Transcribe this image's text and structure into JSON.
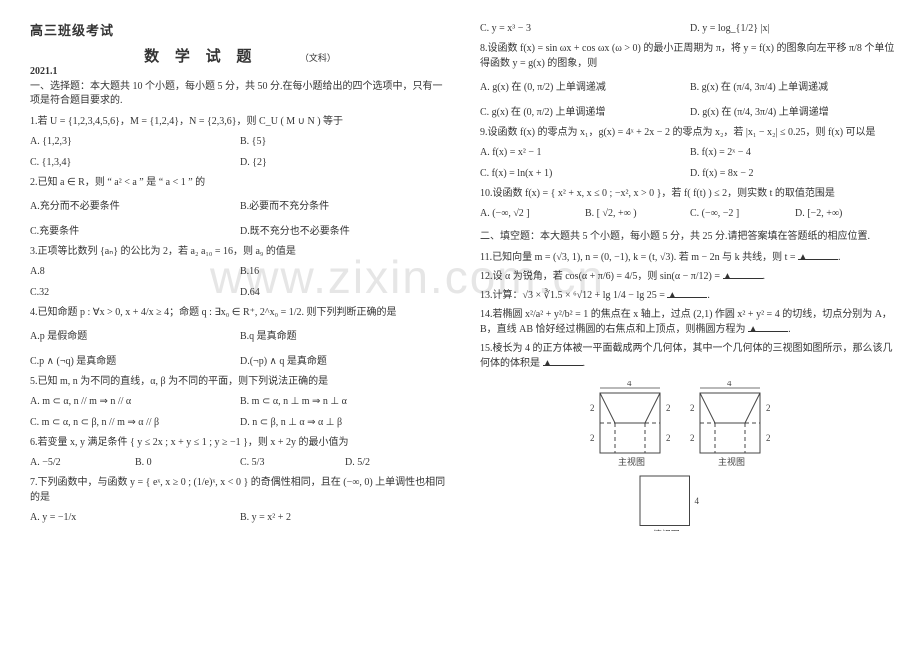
{
  "watermark": "www.zixin.com.cn",
  "left": {
    "header": "高三班级考试",
    "title": "数 学 试 题",
    "title_sub": "（文科）",
    "date": "2021.1",
    "intro": "一、选择题：本大题共 10 个小题，每小题 5 分，共 50 分.在每小题给出的四个选项中，只有一项是符合题目要求的.",
    "q1": "1.若 U = {1,2,3,4,5,6}，M = {1,2,4}，N = {2,3,6}，则 C_U ( M ∪ N ) 等于",
    "q1a": "A. {1,2,3}",
    "q1b": "B. {5}",
    "q1c": "C. {1,3,4}",
    "q1d": "D. {2}",
    "q2": "2.已知 a ∈ R，则 “ a² < a ” 是 “ a < 1 ” 的",
    "q2a": "A.充分而不必要条件",
    "q2b": "B.必要而不充分条件",
    "q2c": "C.充要条件",
    "q2d": "D.既不充分也不必要条件",
    "q3": "3.正项等比数列 {aₙ} 的公比为 2，若 a₂ a₁₀ = 16，则 a₉ 的值是",
    "q3a": "A.8",
    "q3b": "B.16",
    "q3c": "C.32",
    "q3d": "D.64",
    "q4": "4.已知命题 p : ∀x > 0, x + 4/x ≥ 4；命题 q : ∃x₀ ∈ R⁺, 2^x₀ = 1/2. 则下列判断正确的是",
    "q4a": "A.p 是假命题",
    "q4b": "B.q 是真命题",
    "q4c": "C.p ∧ (¬q) 是真命题",
    "q4d": "D.(¬p) ∧ q 是真命题",
    "q5": "5.已知 m, n 为不同的直线，α, β 为不同的平面，则下列说法正确的是",
    "q5a": "A.  m ⊂ α, n // m ⇒ n // α",
    "q5b": "B.  m ⊂ α, n ⊥ m ⇒ n ⊥ α",
    "q5c": "C.  m ⊂ α, n ⊂ β, n // m ⇒ α // β",
    "q5d": "D.  n ⊂ β, n ⊥ α ⇒ α ⊥ β",
    "q6": "6.若变量 x, y 满足条件 { y ≤ 2x ; x + y ≤ 1 ; y ≥ −1 }，则 x + 2y 的最小值为",
    "q6a": "A.  −5/2",
    "q6b": "B.  0",
    "q6c": "C.  5/3",
    "q6d": "D.  5/2",
    "q7": "7.下列函数中，与函数 y = { eˣ, x ≥ 0 ; (1/e)ˣ, x < 0 } 的奇偶性相同，且在 (−∞, 0) 上单调性也相同的是",
    "q7a": "A.  y = −1/x",
    "q7b": "B.  y = x² + 2"
  },
  "right": {
    "q7c": "C.  y = x³ − 3",
    "q7d": "D.  y = log_{1/2} |x|",
    "q8": "8.设函数 f(x) = sin ωx + cos ωx (ω > 0) 的最小正周期为 π，将 y = f(x) 的图象向左平移 π/8 个单位得函数 y = g(x) 的图象，则",
    "q8a": "A.  g(x) 在 (0, π/2) 上单调递减",
    "q8b": "B.  g(x) 在 (π/4, 3π/4) 上单调递减",
    "q8c": "C.  g(x) 在 (0, π/2) 上单调递增",
    "q8d": "D.  g(x) 在 (π/4, 3π/4) 上单调递增",
    "q9": "9.设函数 f(x) 的零点为 x₁，g(x) = 4ˣ + 2x − 2 的零点为 x₂，若 |x₁ − x₂| ≤ 0.25，则 f(x) 可以是",
    "q9a": "A.  f(x) = x² − 1",
    "q9b": "B.  f(x) = 2ˣ − 4",
    "q9c": "C.  f(x) = ln(x + 1)",
    "q9d": "D.  f(x) = 8x − 2",
    "q10": "10.设函数 f(x) = { x² + x, x ≤ 0 ; −x², x > 0 }，若 f( f(t) ) ≤ 2，则实数 t 的取值范围是",
    "q10a": "A.  (−∞, √2 ]",
    "q10b": "B.  [ √2, +∞ )",
    "q10c": "C.  (−∞, −2 ]",
    "q10d": "D.  [−2, +∞)",
    "sec2": "二、填空题：本大题共 5 个小题，每小题 5 分，共 25 分.请把答案填在答题纸的相应位置.",
    "q11": "11.已知向量 m = (√3, 1), n = (0, −1), k = (t, √3). 若 m − 2n 与 k 共线，则 t = ",
    "q12": "12.设 α 为锐角，若 cos(α + π/6) = 4/5，则 sin(α − π/12) = ",
    "q13": "13.计算：√3 × ∛1.5 × ⁶√12 + lg 1/4 − lg 25 = ",
    "q14": "14.若椭圆 x²/a² + y²/b² = 1 的焦点在 x 轴上，过点 (2,1) 作圆 x² + y² = 4 的切线，切点分别为 A，B，直线 AB 恰好经过椭圆的右焦点和上顶点，则椭圆方程为 ",
    "q15": "15.棱长为 4 的正方体被一平面截成两个几何体，其中一个几何体的三视图如图所示，那么该几何体的体积是 ",
    "figure": {
      "top_width": 4,
      "bottom_width": 4,
      "height": 2,
      "inner": 2,
      "side_width": 4,
      "side_h": 4,
      "label_front": "主视图",
      "label_side": "主视图",
      "label_top": "俯视图",
      "stroke": "#444444",
      "dash": "4,3",
      "bg": "#ffffff"
    },
    "blank_mark": "▲"
  }
}
